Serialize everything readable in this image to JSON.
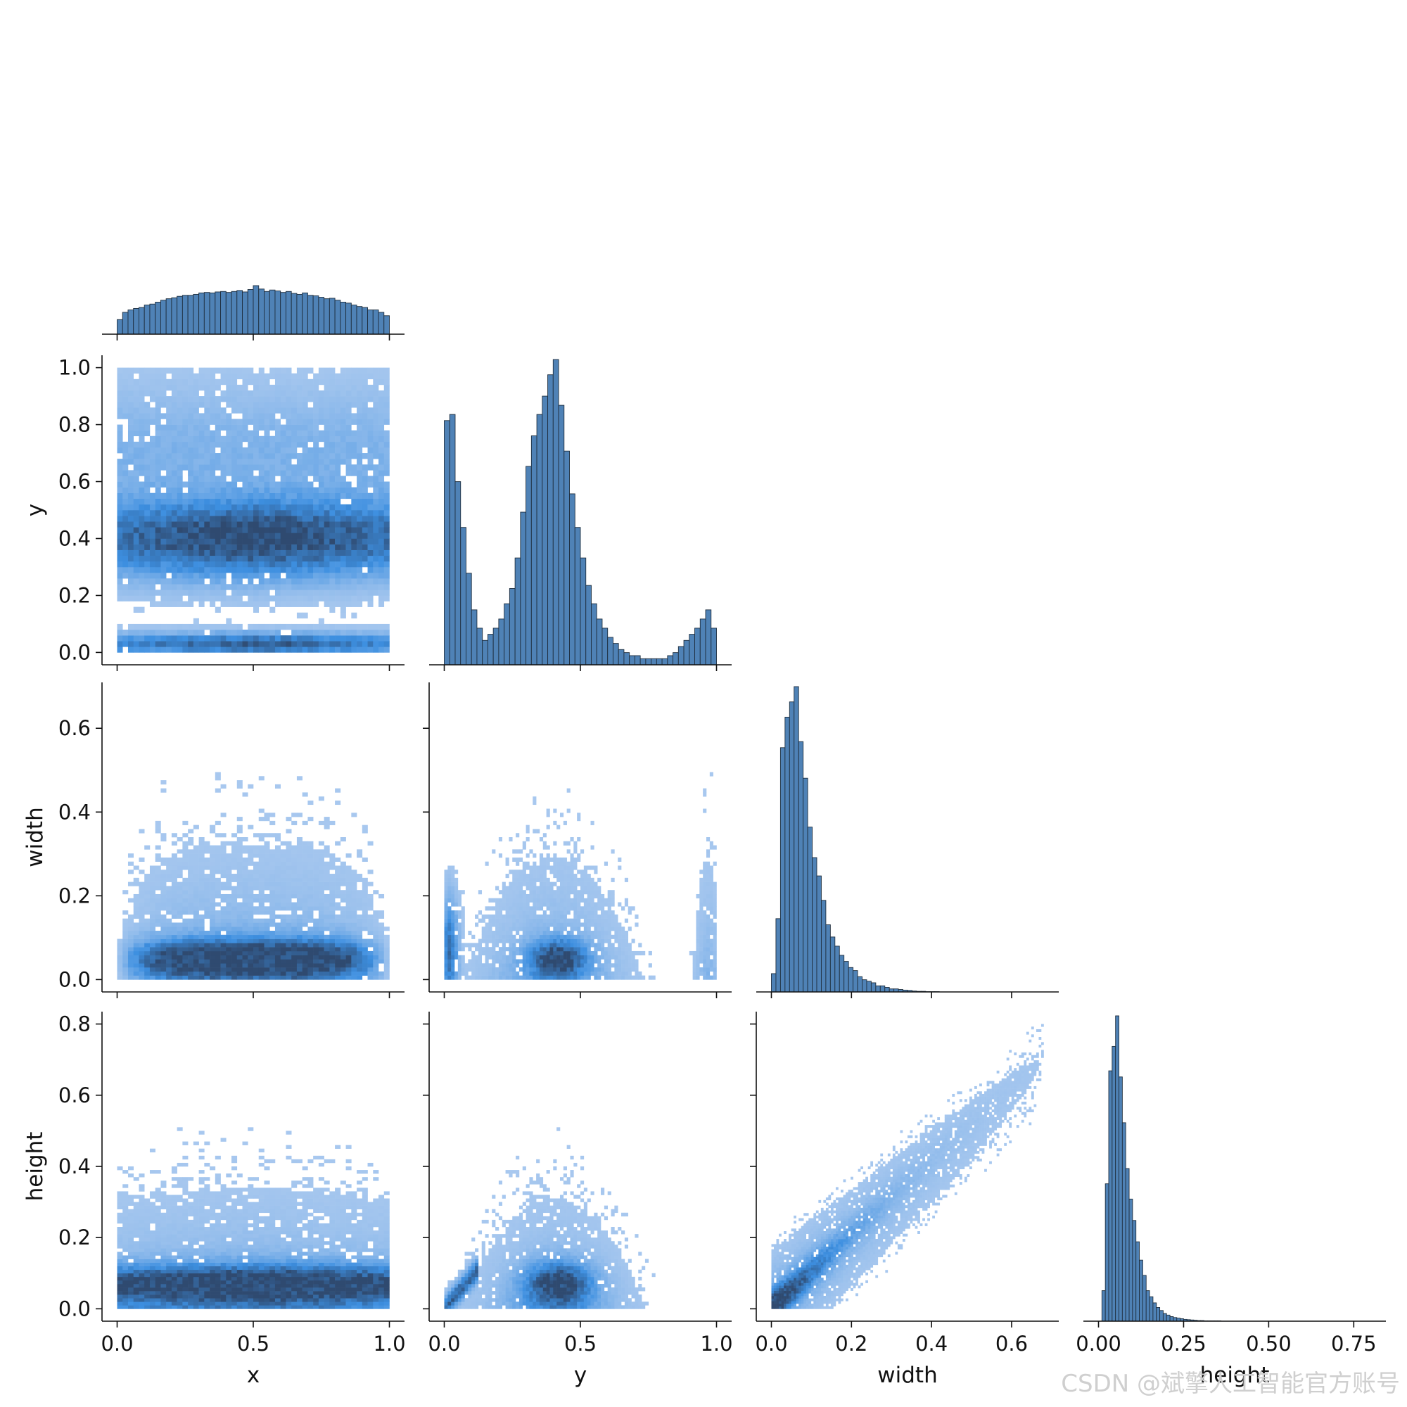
{
  "colors": {
    "bar_fill": "#4f82b6",
    "bar_edge": "#1f2f3f",
    "density_low": "#aac9ef",
    "density_mid": "#3d8fe0",
    "density_high": "#2f4a70"
  },
  "watermark": "CSDN @斌擎人工智能官方账号",
  "chart_data": {
    "type": "pairplot",
    "layout": "lower-triangle (corner)",
    "diagonal": "histogram",
    "off_diagonal": "2D histogram (density)",
    "variables": [
      {
        "name": "x",
        "range": [
          0,
          1
        ],
        "ticks": [
          0.0,
          0.5,
          1.0
        ],
        "tick_labels": [
          "0.0",
          "0.5",
          "1.0"
        ]
      },
      {
        "name": "y",
        "range": [
          0,
          1
        ],
        "ticks": [
          0.0,
          0.2,
          0.4,
          0.6,
          0.8,
          1.0
        ],
        "tick_labels": [
          "0.0",
          "0.2",
          "0.4",
          "0.6",
          "0.8",
          "1.0"
        ],
        "x_tick_labels": [
          "0.0",
          "0.5",
          "1.0"
        ]
      },
      {
        "name": "width",
        "range": [
          0,
          0.68
        ],
        "ticks": [
          0.0,
          0.2,
          0.4,
          0.6
        ],
        "tick_labels": [
          "0.0",
          "0.2",
          "0.4",
          "0.6"
        ]
      },
      {
        "name": "height",
        "range": [
          0,
          0.8
        ],
        "ticks": [
          0.0,
          0.2,
          0.4,
          0.6,
          0.8
        ],
        "tick_labels": [
          "0.0",
          "0.2",
          "0.4",
          "0.6",
          "0.8"
        ],
        "x_ticks": [
          0.0,
          0.25,
          0.5,
          0.75
        ],
        "x_tick_labels": [
          "0.00",
          "0.25",
          "0.50",
          "0.75"
        ]
      }
    ],
    "histograms": {
      "x": {
        "range": [
          0,
          1
        ],
        "bins": 50,
        "relative_counts": [
          0.3,
          0.45,
          0.5,
          0.53,
          0.55,
          0.6,
          0.62,
          0.66,
          0.7,
          0.73,
          0.75,
          0.78,
          0.8,
          0.8,
          0.82,
          0.85,
          0.86,
          0.85,
          0.87,
          0.88,
          0.86,
          0.88,
          0.9,
          0.87,
          0.92,
          1.0,
          0.93,
          0.88,
          0.91,
          0.89,
          0.86,
          0.88,
          0.84,
          0.82,
          0.85,
          0.8,
          0.79,
          0.76,
          0.73,
          0.74,
          0.7,
          0.66,
          0.64,
          0.6,
          0.57,
          0.55,
          0.5,
          0.5,
          0.45,
          0.38
        ]
      },
      "y": {
        "range": [
          0,
          1
        ],
        "bins": 50,
        "relative_counts": [
          0.8,
          0.82,
          0.6,
          0.45,
          0.3,
          0.18,
          0.12,
          0.08,
          0.1,
          0.12,
          0.15,
          0.2,
          0.25,
          0.35,
          0.5,
          0.65,
          0.75,
          0.82,
          0.88,
          0.95,
          1.0,
          0.85,
          0.7,
          0.56,
          0.45,
          0.35,
          0.26,
          0.2,
          0.15,
          0.12,
          0.09,
          0.07,
          0.05,
          0.04,
          0.03,
          0.03,
          0.02,
          0.02,
          0.02,
          0.02,
          0.02,
          0.03,
          0.04,
          0.06,
          0.08,
          0.1,
          0.12,
          0.15,
          0.18,
          0.12
        ]
      },
      "width": {
        "range": [
          0,
          0.68
        ],
        "bins": 60,
        "relative_counts": [
          0.06,
          0.24,
          0.8,
          0.9,
          0.95,
          1.0,
          0.82,
          0.7,
          0.54,
          0.44,
          0.38,
          0.3,
          0.22,
          0.18,
          0.15,
          0.12,
          0.1,
          0.08,
          0.07,
          0.05,
          0.04,
          0.035,
          0.03,
          0.02,
          0.02,
          0.015,
          0.01,
          0.01,
          0.008,
          0.006,
          0.005,
          0.003,
          0.002,
          0.002,
          0.001,
          0.001,
          0.001,
          0,
          0,
          0,
          0,
          0,
          0,
          0,
          0,
          0,
          0,
          0,
          0,
          0,
          0,
          0,
          0,
          0,
          0,
          0,
          0,
          0,
          0,
          0
        ]
      },
      "height": {
        "range": [
          0,
          0.8
        ],
        "bins": 80,
        "relative_counts": [
          0.0,
          0.1,
          0.45,
          0.82,
          0.9,
          1.0,
          0.8,
          0.65,
          0.5,
          0.4,
          0.33,
          0.26,
          0.2,
          0.15,
          0.1,
          0.08,
          0.06,
          0.045,
          0.035,
          0.025,
          0.02,
          0.015,
          0.012,
          0.01,
          0.008,
          0.006,
          0.005,
          0.004,
          0.003,
          0.002,
          0.002,
          0.001,
          0.001,
          0.001,
          0.001,
          0.001,
          0,
          0,
          0,
          0,
          0,
          0,
          0,
          0,
          0,
          0,
          0,
          0,
          0,
          0,
          0,
          0,
          0,
          0,
          0,
          0,
          0,
          0,
          0,
          0,
          0,
          0,
          0,
          0,
          0,
          0,
          0,
          0,
          0,
          0,
          0,
          0,
          0,
          0,
          0,
          0,
          0,
          0,
          0,
          0
        ]
      }
    },
    "density_summary": [
      {
        "pair": [
          "x",
          "y"
        ],
        "dense_regions": [
          {
            "x": 0.5,
            "y": 0.4
          },
          {
            "x": 0.5,
            "y": 0.03
          }
        ]
      },
      {
        "pair": [
          "x",
          "width"
        ],
        "dense_regions": [
          {
            "x": 0.5,
            "y": 0.05
          }
        ]
      },
      {
        "pair": [
          "y",
          "width"
        ],
        "dense_regions": [
          {
            "x": 0.42,
            "y": 0.05
          },
          {
            "x": 0.02,
            "y": 0.07
          }
        ]
      },
      {
        "pair": [
          "x",
          "height"
        ],
        "dense_regions": [
          {
            "x": 0.5,
            "y": 0.07
          }
        ]
      },
      {
        "pair": [
          "y",
          "height"
        ],
        "dense_regions": [
          {
            "x": 0.42,
            "y": 0.07
          }
        ]
      },
      {
        "pair": [
          "width",
          "height"
        ],
        "dense_regions": [
          {
            "x": 0.05,
            "y": 0.06
          }
        ],
        "trend": "positive correlation"
      }
    ]
  }
}
